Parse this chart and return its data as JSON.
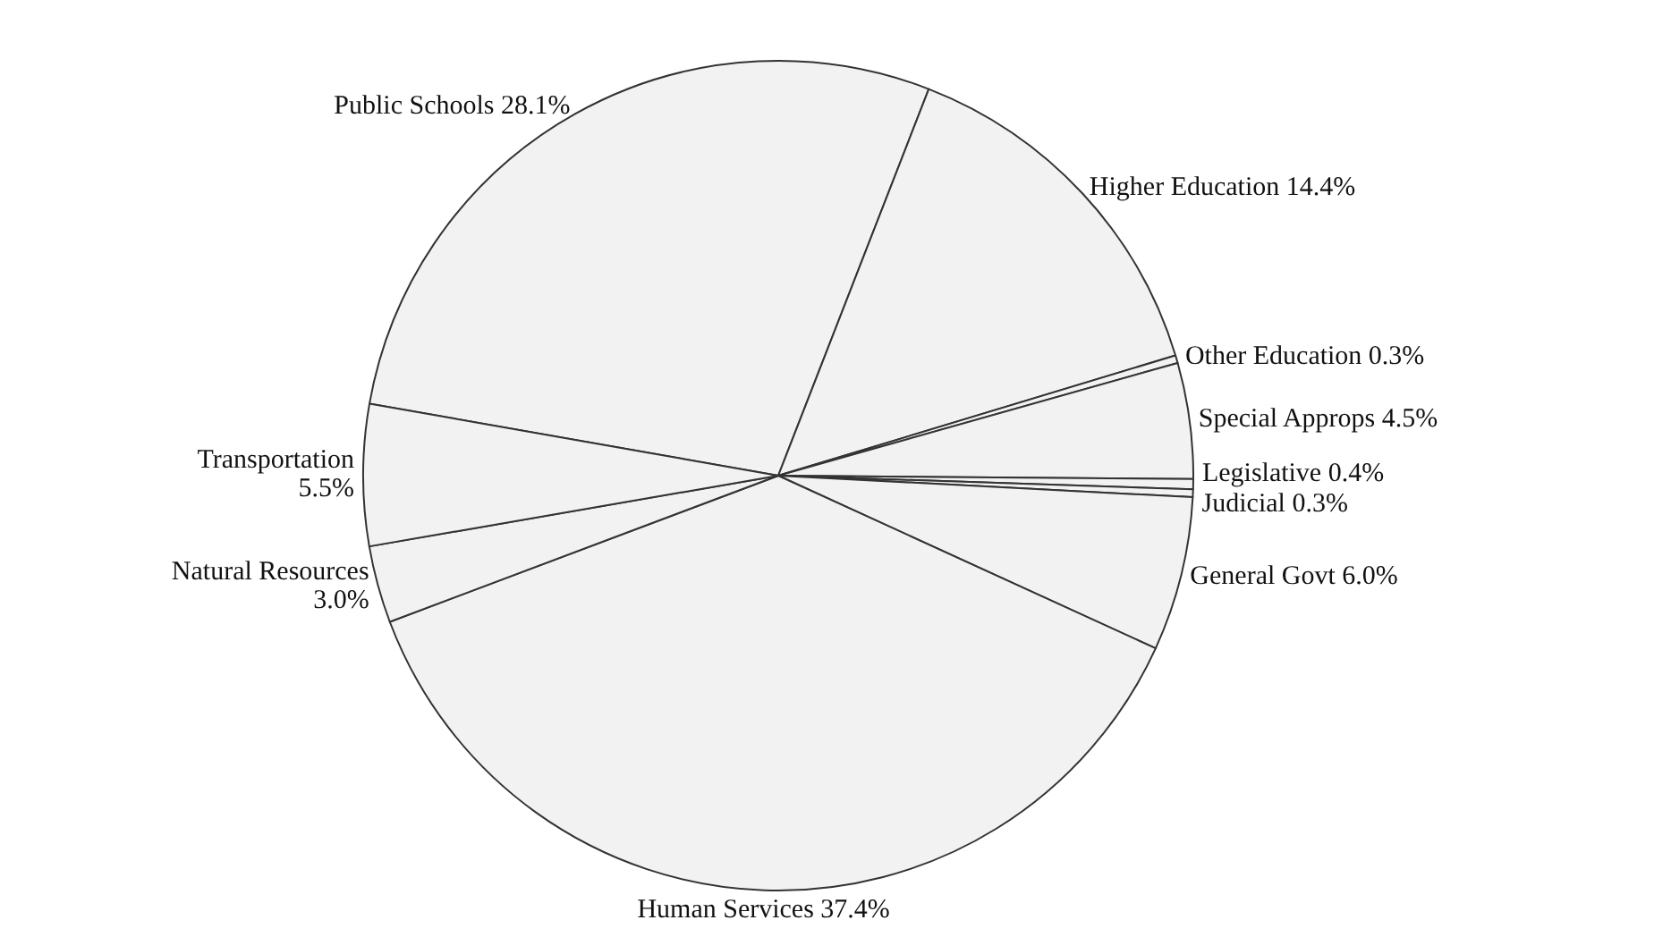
{
  "chart_data": {
    "type": "pie",
    "categories": [
      "Public Schools",
      "Higher Education",
      "Other Education",
      "Special Approps",
      "Legislative",
      "Judicial",
      "General Govt",
      "Human Services",
      "Natural Resources",
      "Transportation"
    ],
    "values": [
      28.1,
      14.4,
      0.3,
      4.5,
      0.4,
      0.3,
      6.0,
      37.4,
      3.0,
      5.5
    ],
    "value_labels": [
      "28.1%",
      "14.4%",
      "0.3%",
      "4.5%",
      "0.4%",
      "0.3%",
      "6.0%",
      "37.4%",
      "3.0%",
      "5.5%"
    ],
    "colors": [
      "#f2f2f2",
      "#f2f2f2",
      "#f2f2f2",
      "#f2f2f2",
      "#f2f2f2",
      "#f2f2f2",
      "#f2f2f2",
      "#f2f2f2",
      "#f2f2f2",
      "#f2f2f2"
    ],
    "legend": false
  }
}
